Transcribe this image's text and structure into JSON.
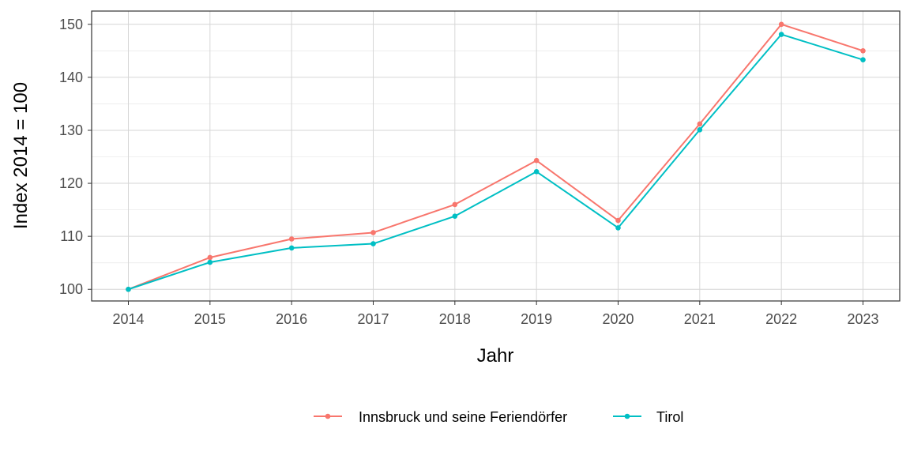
{
  "chart_data": {
    "type": "line",
    "title": "",
    "xlabel": "Jahr",
    "ylabel": "Index  2014  = 100",
    "x": [
      2014,
      2015,
      2016,
      2017,
      2018,
      2019,
      2020,
      2021,
      2022,
      2023
    ],
    "x_tick_labels": [
      "2014",
      "2015",
      "2016",
      "2017",
      "2018",
      "2019",
      "2020",
      "2021",
      "2022",
      "2023"
    ],
    "xlim": [
      2013.55,
      2023.45
    ],
    "ylim": [
      97.8,
      152.5
    ],
    "y_ticks": [
      100,
      110,
      120,
      130,
      140,
      150
    ],
    "y_tick_labels": [
      "100",
      "110",
      "120",
      "130",
      "140",
      "150"
    ],
    "y_minor_ticks": [
      105,
      115,
      125,
      135,
      145
    ],
    "grid": true,
    "legend_position": "bottom",
    "series": [
      {
        "name": "Innsbruck und seine Feriendörfer",
        "color": "#F8766D",
        "values": [
          100.0,
          106.0,
          109.5,
          110.7,
          116.0,
          124.3,
          113.0,
          131.2,
          150.0,
          145.0
        ]
      },
      {
        "name": "Tirol",
        "color": "#00BFC4",
        "values": [
          100.0,
          105.1,
          107.8,
          108.6,
          113.8,
          122.2,
          111.6,
          130.1,
          148.1,
          143.3
        ]
      }
    ]
  }
}
